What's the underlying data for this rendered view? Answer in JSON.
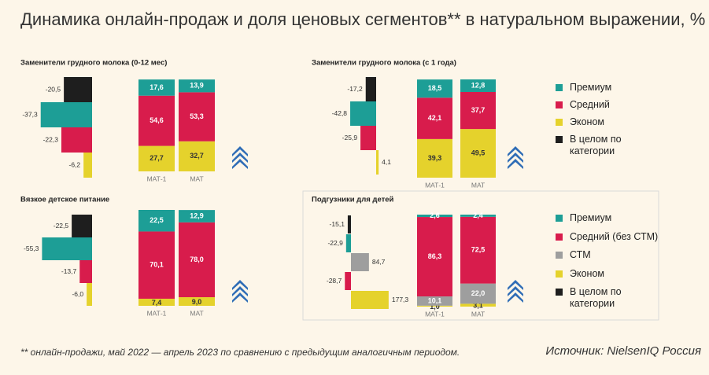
{
  "title": "Динамика онлайн-продаж и доля ценовых сегментов** в натуральном выражении, %",
  "footnote": "** онлайн-продажи, май 2022 — апрель 2023 по сравнению с предыдущим аналогичным периодом.",
  "source": "Источник: NielsenIQ Россия",
  "colors": {
    "premium": "#1d9e96",
    "middle": "#d81c4c",
    "econom": "#e5d22c",
    "total": "#1e1e1e",
    "stm": "#9e9e9e",
    "arrow": "#2f6db6",
    "label_white": "#ffffff",
    "label_dark": "#333333"
  },
  "legend1": [
    {
      "key": "premium",
      "label": "Премиум"
    },
    {
      "key": "middle",
      "label": "Средний"
    },
    {
      "key": "econom",
      "label": "Эконом"
    },
    {
      "key": "total",
      "label": "В целом по категории"
    }
  ],
  "legend2": [
    {
      "key": "premium",
      "label": "Премиум"
    },
    {
      "key": "middle",
      "label": "Средний (без СТМ)"
    },
    {
      "key": "stm",
      "label": "СТМ"
    },
    {
      "key": "econom",
      "label": "Эконом"
    },
    {
      "key": "total",
      "label": "В целом по категории"
    }
  ],
  "chart_data": [
    {
      "type": "bar",
      "title": "Заменители грудного молока (0-12 мес)",
      "growth": [
        {
          "key": "total",
          "value": -20.5,
          "label": "-20,5"
        },
        {
          "key": "premium",
          "value": -37.3,
          "label": "-37,3"
        },
        {
          "key": "middle",
          "value": -22.3,
          "label": "-22,3"
        },
        {
          "key": "econom",
          "value": -6.2,
          "label": "-6,2"
        }
      ],
      "categories": [
        "МАТ-1",
        "МАТ"
      ],
      "series": [
        {
          "key": "econom",
          "values": [
            27.7,
            32.7
          ],
          "labels": [
            "27,7",
            "32,7"
          ]
        },
        {
          "key": "middle",
          "values": [
            54.6,
            53.3
          ],
          "labels": [
            "54,6",
            "53,3"
          ]
        },
        {
          "key": "premium",
          "values": [
            17.6,
            13.9
          ],
          "labels": [
            "17,6",
            "13,9"
          ]
        }
      ]
    },
    {
      "type": "bar",
      "title": "Заменители грудного молока (с 1 года)",
      "growth": [
        {
          "key": "total",
          "value": -17.2,
          "label": "-17,2"
        },
        {
          "key": "premium",
          "value": -42.8,
          "label": "-42,8"
        },
        {
          "key": "middle",
          "value": -25.9,
          "label": "-25,9"
        },
        {
          "key": "econom",
          "value": 4.1,
          "label": "4,1"
        }
      ],
      "categories": [
        "МАТ-1",
        "МАТ"
      ],
      "series": [
        {
          "key": "econom",
          "values": [
            39.3,
            49.5
          ],
          "labels": [
            "39,3",
            "49,5"
          ]
        },
        {
          "key": "middle",
          "values": [
            42.1,
            37.7
          ],
          "labels": [
            "42,1",
            "37,7"
          ]
        },
        {
          "key": "premium",
          "values": [
            18.5,
            12.8
          ],
          "labels": [
            "18,5",
            "12,8"
          ]
        }
      ]
    },
    {
      "type": "bar",
      "title": "Вязкое детское питание",
      "growth": [
        {
          "key": "total",
          "value": -22.5,
          "label": "-22,5"
        },
        {
          "key": "premium",
          "value": -55.3,
          "label": "-55,3"
        },
        {
          "key": "middle",
          "value": -13.7,
          "label": "-13,7"
        },
        {
          "key": "econom",
          "value": -6.0,
          "label": "-6,0"
        }
      ],
      "categories": [
        "МАТ-1",
        "МАТ"
      ],
      "series": [
        {
          "key": "econom",
          "values": [
            7.4,
            9.0
          ],
          "labels": [
            "7,4",
            "9,0"
          ]
        },
        {
          "key": "middle",
          "values": [
            70.1,
            78.0
          ],
          "labels": [
            "70,1",
            "78,0"
          ]
        },
        {
          "key": "premium",
          "values": [
            22.5,
            12.9
          ],
          "labels": [
            "22,5",
            "12,9"
          ]
        }
      ]
    },
    {
      "type": "bar",
      "title": "Подгузники для детей",
      "growth": [
        {
          "key": "total",
          "value": -15.1,
          "label": "-15,1"
        },
        {
          "key": "premium",
          "value": -22.9,
          "label": "-22,9"
        },
        {
          "key": "stm",
          "value": 84.7,
          "label": "84,7"
        },
        {
          "key": "middle",
          "value": -28.7,
          "label": "-28,7"
        },
        {
          "key": "econom",
          "value": 177.3,
          "label": "177,3"
        }
      ],
      "categories": [
        "МАТ-1",
        "МАТ"
      ],
      "series": [
        {
          "key": "econom",
          "values": [
            1.0,
            3.1
          ],
          "labels": [
            "1,0",
            "3,1"
          ]
        },
        {
          "key": "stm",
          "values": [
            10.1,
            22.0
          ],
          "labels": [
            "10,1",
            "22,0"
          ]
        },
        {
          "key": "middle",
          "values": [
            86.3,
            72.5
          ],
          "labels": [
            "86,3",
            "72,5"
          ]
        },
        {
          "key": "premium",
          "values": [
            2.6,
            2.4
          ],
          "labels": [
            "2,6",
            "2,4"
          ]
        }
      ]
    }
  ]
}
